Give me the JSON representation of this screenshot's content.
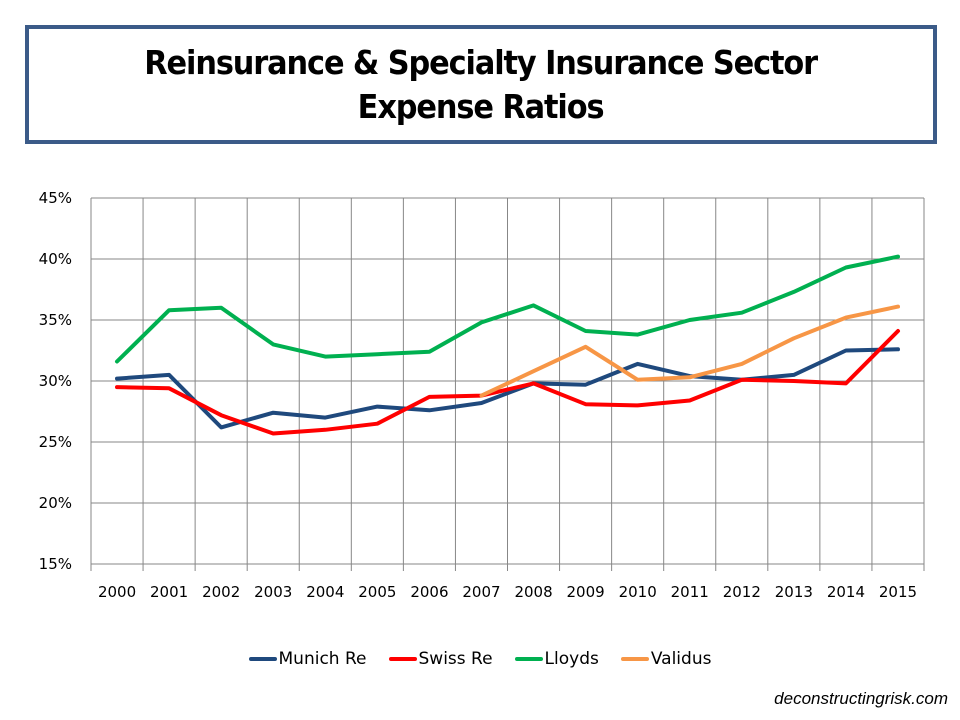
{
  "title": {
    "line1": "Reinsurance & Specialty Insurance Sector",
    "line2": "Expense Ratios"
  },
  "watermark": "deconstructingrisk.com",
  "chart_data": {
    "type": "line",
    "title": "Reinsurance & Specialty Insurance Sector Expense Ratios",
    "xlabel": "",
    "ylabel": "",
    "categories": [
      "2000",
      "2001",
      "2002",
      "2003",
      "2004",
      "2005",
      "2006",
      "2007",
      "2008",
      "2009",
      "2010",
      "2011",
      "2012",
      "2013",
      "2014",
      "2015"
    ],
    "ylim": [
      15,
      45
    ],
    "yticks": [
      15,
      20,
      25,
      30,
      35,
      40,
      45
    ],
    "ytick_labels": [
      "15%",
      "20%",
      "25%",
      "30%",
      "35%",
      "40%",
      "45%"
    ],
    "grid": true,
    "legend_position": "bottom",
    "series": [
      {
        "name": "Munich Re",
        "color": "#1F497D",
        "values": [
          30.2,
          30.5,
          26.2,
          27.4,
          27.0,
          27.9,
          27.6,
          28.2,
          29.8,
          29.7,
          31.4,
          30.4,
          30.1,
          30.5,
          32.5,
          32.6
        ]
      },
      {
        "name": "Swiss Re",
        "color": "#FF0000",
        "values": [
          29.5,
          29.4,
          27.2,
          25.7,
          26.0,
          26.5,
          28.7,
          28.8,
          29.8,
          28.1,
          28.0,
          28.4,
          30.1,
          30.0,
          29.8,
          34.1
        ]
      },
      {
        "name": "Lloyds",
        "color": "#00B050",
        "values": [
          31.6,
          35.8,
          36.0,
          33.0,
          32.0,
          32.2,
          32.4,
          34.8,
          36.2,
          34.1,
          33.8,
          35.0,
          35.6,
          37.3,
          39.3,
          40.2
        ]
      },
      {
        "name": "Validus",
        "color": "#F79646",
        "values": [
          null,
          null,
          null,
          null,
          null,
          null,
          null,
          28.8,
          30.8,
          32.8,
          30.1,
          30.3,
          31.4,
          33.5,
          35.2,
          36.1
        ]
      }
    ]
  }
}
